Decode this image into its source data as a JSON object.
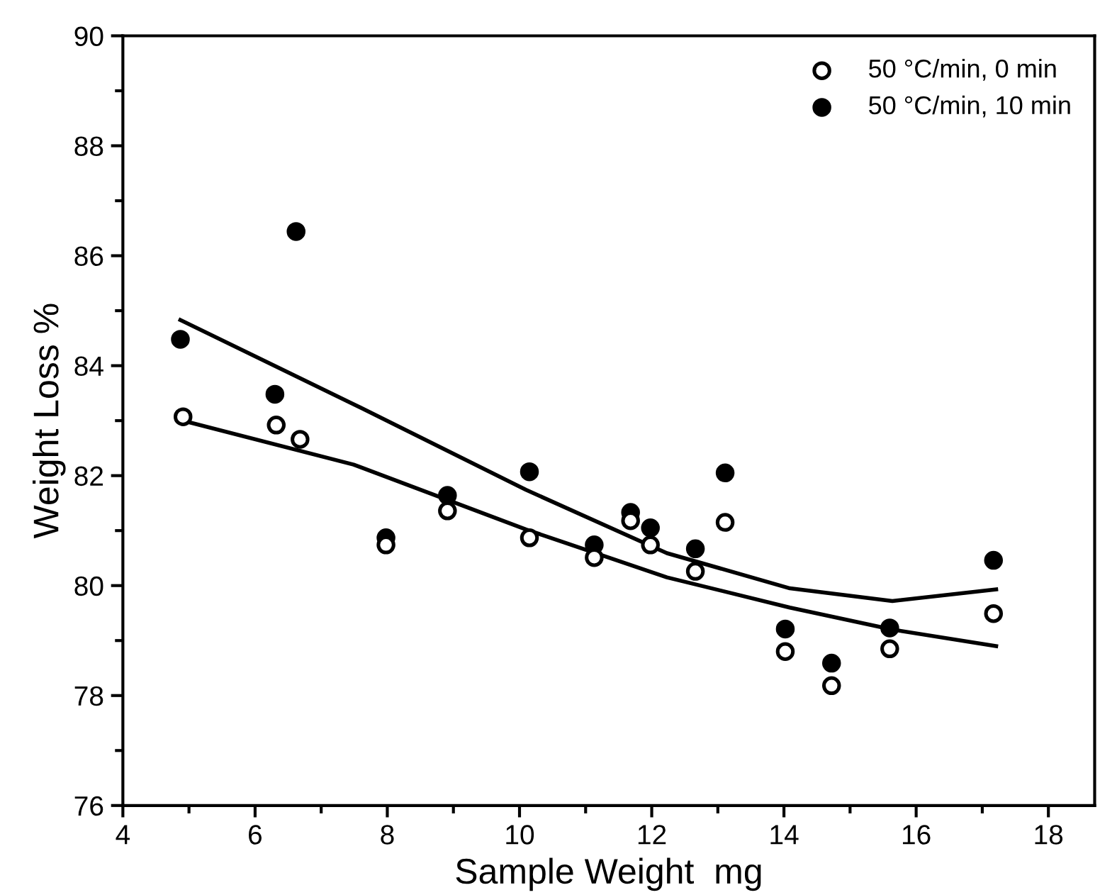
{
  "chart_data": {
    "type": "scatter",
    "xlabel": "Sample Weight  mg",
    "ylabel": "Weight Loss %",
    "xlim": [
      4,
      18.7
    ],
    "ylim": [
      76,
      90
    ],
    "xticks": [
      4,
      6,
      8,
      10,
      12,
      14,
      16,
      18
    ],
    "yticks": [
      76,
      78,
      80,
      82,
      84,
      86,
      88,
      90
    ],
    "grid": false,
    "legend": "top right",
    "series": [
      {
        "name": "50 °C/min, 0 min",
        "color": "#ffffff",
        "marker": "circle",
        "x": [
          4.91,
          6.32,
          6.68,
          7.98,
          8.91,
          10.15,
          11.13,
          11.68,
          11.98,
          12.66,
          13.11,
          14.02,
          14.72,
          15.6,
          17.17
        ],
        "values": [
          83.07,
          82.92,
          82.66,
          80.74,
          81.36,
          80.87,
          80.51,
          81.18,
          80.74,
          80.26,
          81.15,
          78.8,
          78.18,
          78.85,
          79.49
        ]
      },
      {
        "name": "50 °C/min, 10 min",
        "color": "#000000",
        "marker": "circle",
        "x": [
          4.87,
          6.3,
          6.62,
          7.98,
          8.91,
          10.15,
          11.13,
          11.68,
          11.98,
          12.66,
          13.11,
          14.02,
          14.72,
          15.6,
          17.17
        ],
        "values": [
          84.48,
          83.48,
          86.44,
          80.87,
          81.64,
          82.07,
          80.74,
          81.33,
          81.05,
          80.67,
          82.05,
          79.21,
          78.59,
          79.23,
          80.46
        ]
      },
      {
        "type": "line",
        "marker": "none",
        "color": "#000000",
        "x": [
          4.91,
          7.49,
          10.1,
          12.23,
          14.09,
          15.64,
          17.21
        ],
        "values": [
          83.0,
          82.2,
          81.02,
          80.15,
          79.6,
          79.2,
          78.9
        ]
      },
      {
        "type": "line",
        "marker": "none",
        "color": "#000000",
        "x": [
          4.87,
          7.49,
          10.1,
          12.23,
          14.09,
          15.64,
          17.21
        ],
        "values": [
          84.83,
          83.3,
          81.74,
          80.59,
          79.95,
          79.72,
          79.93
        ]
      }
    ]
  }
}
